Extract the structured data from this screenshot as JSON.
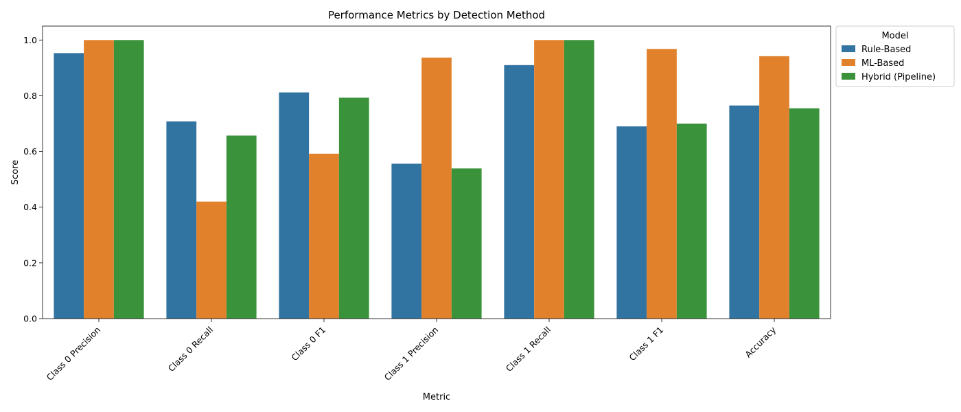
{
  "chart_data": {
    "type": "bar",
    "title": "Performance Metrics by Detection Method",
    "xlabel": "Metric",
    "ylabel": "Score",
    "ylim": [
      0,
      1.05
    ],
    "yticks": [
      "0.0",
      "0.2",
      "0.4",
      "0.6",
      "0.8",
      "1.0"
    ],
    "grid": false,
    "legend": {
      "title": "Model",
      "placement": "outside-top-right"
    },
    "categories": [
      "Class 0 Precision",
      "Class 0 Recall",
      "Class 0 F1",
      "Class 1 Precision",
      "Class 1 Recall",
      "Class 1 F1",
      "Accuracy"
    ],
    "series": [
      {
        "name": "Rule-Based",
        "color": "#3274a1",
        "values": [
          0.953,
          0.708,
          0.812,
          0.556,
          0.91,
          0.69,
          0.765
        ]
      },
      {
        "name": "ML-Based",
        "color": "#e1812c",
        "values": [
          1.0,
          0.42,
          0.592,
          0.937,
          1.0,
          0.968,
          0.942
        ]
      },
      {
        "name": "Hybrid (Pipeline)",
        "color": "#3a923a",
        "values": [
          1.0,
          0.657,
          0.793,
          0.539,
          1.0,
          0.7,
          0.755
        ]
      }
    ]
  }
}
